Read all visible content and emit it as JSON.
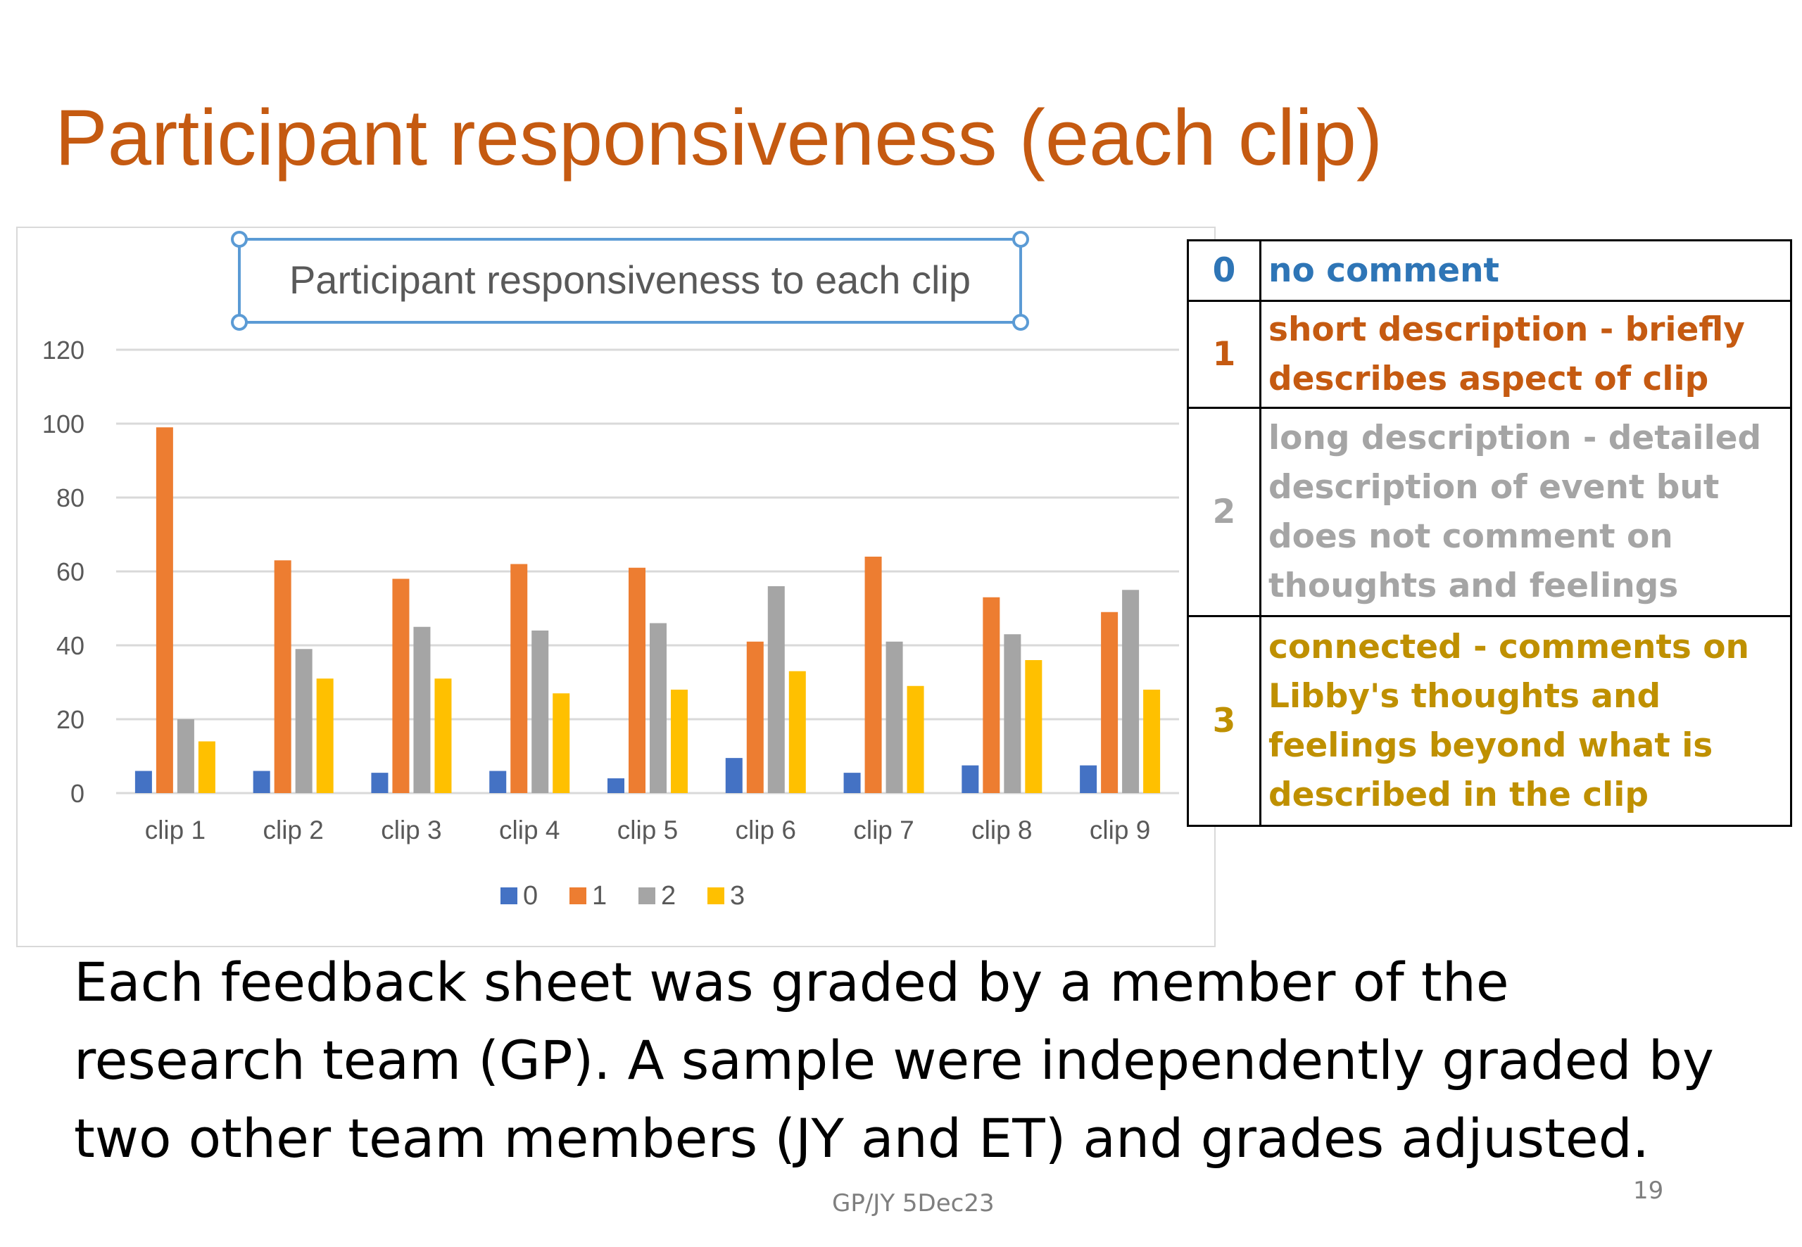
{
  "slide": {
    "title": "Participant responsiveness (each clip)",
    "body_text": "Each feedback sheet was graded by a member of the research team (GP). A sample were independently graded by two other team members (JY and ET) and grades adjusted.",
    "footer": "GP/JY 5Dec23",
    "page_number": "19"
  },
  "grade_key": [
    {
      "code": "0",
      "description": "no comment",
      "color": "#2E75B6"
    },
    {
      "code": "1",
      "description": "short description - briefly describes aspect of clip",
      "color": "#C55A11"
    },
    {
      "code": "2",
      "description": "long description - detailed description of event but does not comment on thoughts and feelings",
      "color": "#A5A5A5"
    },
    {
      "code": "3",
      "description": "connected - comments on Libby's thoughts and feelings beyond what is described in the clip",
      "color": "#BF9000"
    }
  ],
  "chart_data": {
    "type": "bar",
    "title": "Participant responsiveness to each clip",
    "xlabel": "",
    "ylabel": "",
    "ylim": [
      0,
      120
    ],
    "yticks": [
      "0",
      "20",
      "40",
      "60",
      "80",
      "100",
      "120"
    ],
    "grid": true,
    "legend_position": "bottom",
    "categories": [
      "clip 1",
      "clip 2",
      "clip 3",
      "clip 4",
      "clip 5",
      "clip 6",
      "clip 7",
      "clip 8",
      "clip 9"
    ],
    "series": [
      {
        "name": "0",
        "color": "#4472C4",
        "values": [
          6,
          6,
          5.5,
          6,
          4,
          9.5,
          5.5,
          7.5,
          7.5
        ]
      },
      {
        "name": "1",
        "color": "#ED7D31",
        "values": [
          99,
          63,
          58,
          62,
          61,
          41,
          64,
          53,
          49
        ]
      },
      {
        "name": "2",
        "color": "#A5A5A5",
        "values": [
          20,
          39,
          45,
          44,
          46,
          56,
          41,
          43,
          55
        ]
      },
      {
        "name": "3",
        "color": "#FFC000",
        "values": [
          14,
          31,
          31,
          27,
          28,
          33,
          29,
          36,
          28
        ]
      }
    ]
  }
}
